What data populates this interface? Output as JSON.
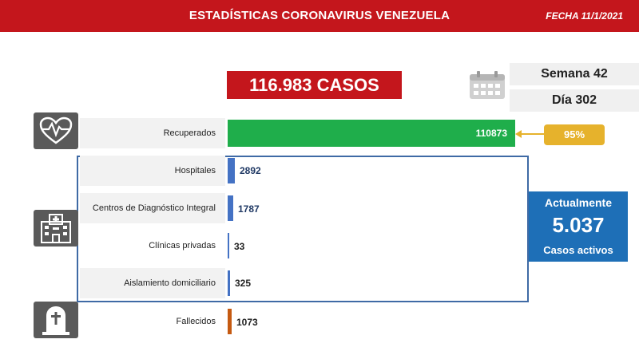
{
  "header": {
    "title": "ESTADÍSTICAS CORONAVIRUS VENEZUELA",
    "date": "FECHA 11/1/2021"
  },
  "total_cases": "116.983 CASOS",
  "week": "Semana 42",
  "day": "Día 302",
  "icons": {
    "calendar": "calendar-icon",
    "recovered": "heart-pulse-icon",
    "hospital": "hospital-building-icon",
    "deceased": "tombstone-icon"
  },
  "colors": {
    "brand_red": "#c4161c",
    "recovered_green": "#1fae4b",
    "hospital_blue": "#4472c4",
    "deceased_orange": "#c55a11",
    "percent_gold": "#e6b22c",
    "active_blue": "#1e6fb7"
  },
  "recovered": {
    "label": "Recuperados",
    "value": 110873,
    "display": "110873",
    "percent": "95%"
  },
  "active_rows": [
    {
      "label": "Hospitales",
      "value": 2892,
      "display": "2892"
    },
    {
      "label": "Centros de Diagnóstico Integral",
      "value": 1787,
      "display": "1787"
    },
    {
      "label": "Clínicas privadas",
      "value": 33,
      "display": "33"
    },
    {
      "label": "Aislamiento domiciliario",
      "value": 325,
      "display": "325"
    }
  ],
  "deceased": {
    "label": "Fallecidos",
    "value": 1073,
    "display": "1073"
  },
  "active_summary": {
    "title": "Actualmente",
    "value": "5.037",
    "subtitle": "Casos activos"
  }
}
